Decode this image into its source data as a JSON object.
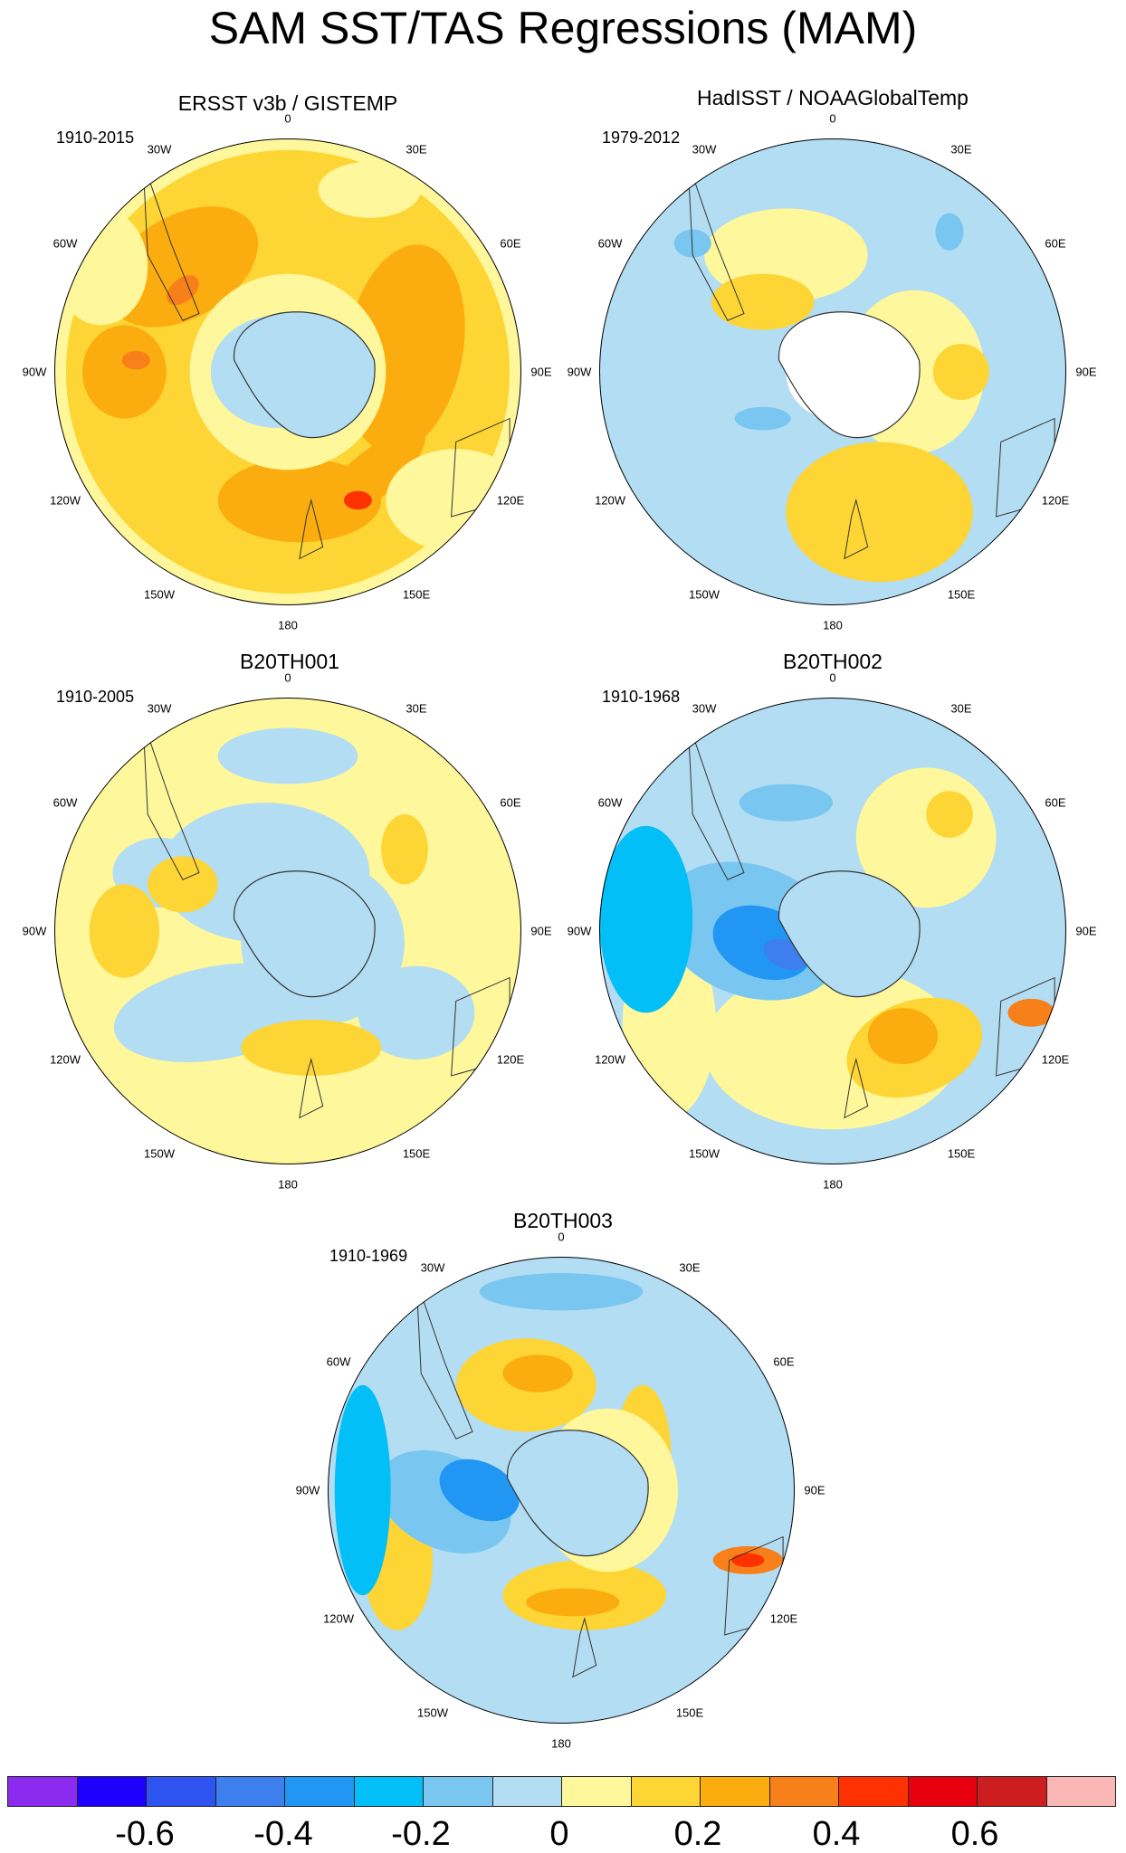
{
  "title": "SAM SST/TAS Regressions (MAM)",
  "panels": [
    {
      "id": "p1",
      "title": "ERSST v3b / GISTEMP",
      "period": "1910-2015",
      "style": "obs1"
    },
    {
      "id": "p2",
      "title": "HadISST / NOAAGlobalTemp",
      "period": "1979-2012",
      "style": "obs2"
    },
    {
      "id": "p3",
      "title": "B20TH001",
      "period": "1910-2005",
      "style": "m1"
    },
    {
      "id": "p4",
      "title": "B20TH002",
      "period": "1910-1968",
      "style": "m2"
    },
    {
      "id": "p5",
      "title": "B20TH003",
      "period": "1910-1969",
      "style": "m3"
    }
  ],
  "lon_labels": [
    "0",
    "30E",
    "60E",
    "90E",
    "120E",
    "150E",
    "180",
    "150W",
    "120W",
    "90W",
    "60W",
    "30W"
  ],
  "colorbar": {
    "colors": [
      "#8b2bef",
      "#1e00ff",
      "#2d53f0",
      "#3d7fec",
      "#2196f3",
      "#03bff7",
      "#79c7f0",
      "#b3ddf3",
      "#fef79b",
      "#fdd534",
      "#fbad0f",
      "#f8801a",
      "#fd3200",
      "#e9000e",
      "#cc1e1e",
      "#fbb6b6"
    ],
    "labels": [
      "-0.6",
      "-0.4",
      "-0.2",
      "0",
      "0.2",
      "0.4",
      "0.6"
    ]
  }
}
